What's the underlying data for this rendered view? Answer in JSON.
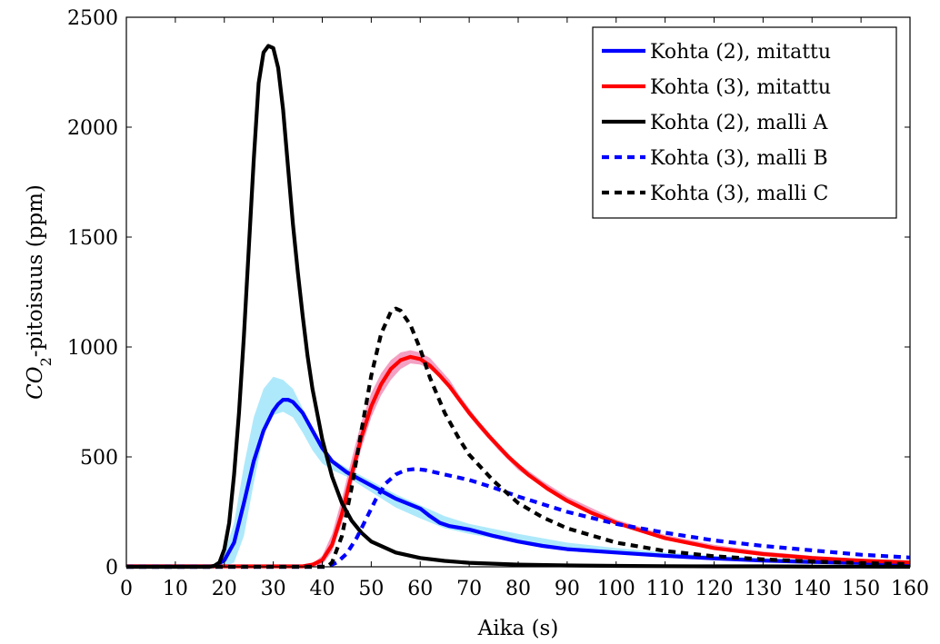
{
  "chart_data": {
    "type": "line",
    "title": "",
    "xlabel": "Aika (s)",
    "ylabel_main": "CO",
    "ylabel_sub": "2",
    "ylabel_rest": "-pitoisuus (ppm)",
    "xlim": [
      0,
      160
    ],
    "ylim": [
      0,
      2500
    ],
    "xticks": [
      0,
      10,
      20,
      30,
      40,
      50,
      60,
      70,
      80,
      90,
      100,
      110,
      120,
      130,
      140,
      150,
      160
    ],
    "yticks": [
      0,
      500,
      1000,
      1500,
      2000,
      2500
    ],
    "grid": false,
    "legend_position": "top-right",
    "bands": [
      {
        "color": "#aee9fb",
        "x": [
          0,
          18,
          20,
          22,
          24,
          26,
          28,
          30,
          32,
          34,
          36,
          38,
          40,
          42,
          45,
          50,
          55,
          60,
          65,
          70,
          80,
          90,
          100,
          110,
          120,
          130,
          140,
          150,
          160
        ],
        "upper": [
          10,
          10,
          60,
          200,
          460,
          680,
          810,
          865,
          850,
          810,
          720,
          620,
          540,
          490,
          450,
          390,
          330,
          280,
          230,
          195,
          150,
          110,
          85,
          65,
          50,
          40,
          32,
          26,
          22
        ],
        "lower": [
          0,
          0,
          0,
          20,
          140,
          380,
          600,
          690,
          705,
          680,
          610,
          530,
          470,
          440,
          410,
          340,
          270,
          220,
          175,
          150,
          110,
          80,
          60,
          45,
          35,
          28,
          22,
          18,
          14
        ]
      },
      {
        "color": "#f4a0c3",
        "x": [
          0,
          36,
          38,
          40,
          42,
          44,
          46,
          48,
          50,
          52,
          54,
          56,
          58,
          60,
          62,
          64,
          66,
          68,
          70,
          72,
          76,
          80,
          85,
          90,
          100,
          110,
          120,
          130,
          140,
          150,
          160
        ],
        "upper": [
          5,
          5,
          15,
          50,
          150,
          310,
          490,
          660,
          790,
          880,
          940,
          975,
          985,
          975,
          950,
          900,
          850,
          780,
          720,
          660,
          560,
          470,
          390,
          320,
          215,
          145,
          100,
          70,
          50,
          36,
          26
        ],
        "lower": [
          0,
          0,
          0,
          10,
          70,
          200,
          370,
          540,
          680,
          780,
          850,
          900,
          925,
          920,
          900,
          860,
          810,
          745,
          685,
          630,
          530,
          440,
          365,
          295,
          195,
          130,
          88,
          60,
          42,
          30,
          20
        ]
      }
    ],
    "series": [
      {
        "name": "Kohta (2), mitattu",
        "color": "#0000ff",
        "dash": "solid",
        "x": [
          0,
          18,
          20,
          22,
          24,
          26,
          28,
          30,
          31,
          32,
          33,
          34,
          36,
          38,
          40,
          42,
          45,
          50,
          55,
          60,
          62,
          64,
          66,
          70,
          75,
          80,
          85,
          90,
          100,
          110,
          120,
          130,
          140,
          150,
          160
        ],
        "y": [
          2,
          2,
          30,
          110,
          290,
          480,
          620,
          710,
          740,
          760,
          760,
          750,
          700,
          620,
          540,
          480,
          430,
          370,
          310,
          265,
          230,
          200,
          185,
          170,
          140,
          115,
          95,
          80,
          65,
          50,
          38,
          28,
          22,
          18,
          14
        ]
      },
      {
        "name": "Kohta (3), mitattu",
        "color": "#ff0000",
        "dash": "solid",
        "x": [
          0,
          36,
          38,
          40,
          42,
          44,
          46,
          48,
          50,
          52,
          54,
          56,
          58,
          60,
          62,
          64,
          66,
          68,
          70,
          74,
          78,
          82,
          86,
          90,
          95,
          100,
          110,
          120,
          130,
          140,
          150,
          160
        ],
        "y": [
          2,
          2,
          10,
          30,
          100,
          240,
          420,
          590,
          730,
          830,
          900,
          940,
          955,
          945,
          915,
          870,
          820,
          760,
          700,
          595,
          500,
          420,
          355,
          300,
          245,
          200,
          130,
          85,
          58,
          40,
          28,
          20
        ]
      },
      {
        "name": "Kohta (2), malli A",
        "color": "#000000",
        "dash": "solid",
        "x": [
          0,
          17,
          18,
          19,
          20,
          21,
          22,
          23,
          24,
          25,
          26,
          27,
          28,
          29,
          30,
          31,
          32,
          33,
          34,
          35,
          36,
          37,
          38,
          40,
          42,
          44,
          46,
          48,
          50,
          55,
          60,
          65,
          70,
          80,
          90,
          100,
          110,
          120,
          130,
          140,
          150,
          160
        ],
        "y": [
          0,
          0,
          5,
          20,
          80,
          200,
          420,
          700,
          1050,
          1450,
          1850,
          2200,
          2340,
          2370,
          2360,
          2270,
          2080,
          1820,
          1560,
          1340,
          1140,
          960,
          810,
          580,
          410,
          290,
          210,
          155,
          115,
          65,
          40,
          27,
          18,
          10,
          6,
          4,
          3,
          2,
          2,
          1,
          1,
          0
        ]
      },
      {
        "name": "Kohta (3), malli B",
        "color": "#0000ff",
        "dash": "dashed",
        "x": [
          0,
          41,
          43,
          45,
          47,
          49,
          51,
          53,
          55,
          57,
          59,
          61,
          63,
          65,
          70,
          75,
          80,
          90,
          100,
          110,
          120,
          130,
          140,
          150,
          160
        ],
        "y": [
          0,
          0,
          20,
          60,
          130,
          220,
          310,
          380,
          420,
          440,
          445,
          440,
          430,
          420,
          395,
          360,
          320,
          250,
          195,
          155,
          120,
          95,
          75,
          55,
          42
        ]
      },
      {
        "name": "Kohta (3), malli C",
        "color": "#000000",
        "dash": "dashed",
        "x": [
          0,
          41,
          42,
          44,
          46,
          48,
          50,
          52,
          54,
          55,
          56,
          58,
          60,
          62,
          65,
          68,
          70,
          75,
          80,
          85,
          90,
          100,
          110,
          120,
          130,
          140,
          150,
          160
        ],
        "y": [
          0,
          0,
          20,
          140,
          360,
          620,
          870,
          1060,
          1160,
          1175,
          1165,
          1100,
          990,
          860,
          700,
          580,
          510,
          390,
          290,
          225,
          175,
          110,
          72,
          48,
          34,
          24,
          17,
          12
        ]
      }
    ]
  }
}
